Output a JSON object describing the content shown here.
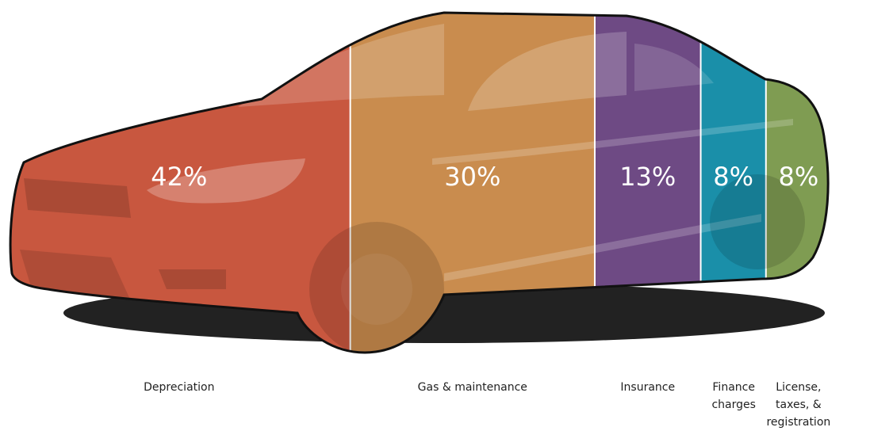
{
  "chart_data": {
    "type": "bar",
    "categories": [
      "Depreciation",
      "Gas & maintenance",
      "Insurance",
      "Finance charges",
      "License, taxes, & registration"
    ],
    "values": [
      42,
      30,
      13,
      8,
      8
    ],
    "value_labels": [
      "42%",
      "30%",
      "13%",
      "8%",
      "8%"
    ],
    "colors": [
      "#c8573f",
      "#c98c4e",
      "#6e4a84",
      "#1a8fa9",
      "#7f9c52"
    ]
  }
}
